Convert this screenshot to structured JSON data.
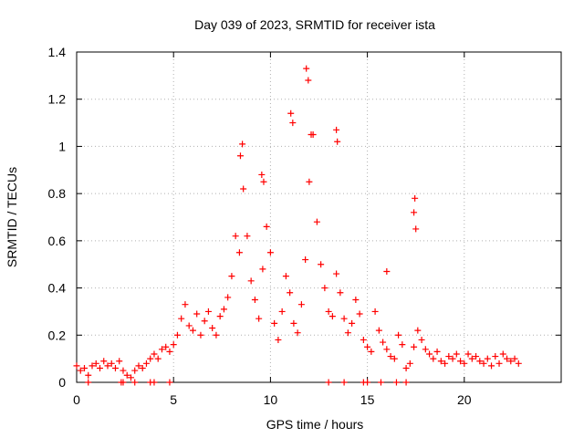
{
  "chart_data": {
    "type": "scatter",
    "title": "Day 039 of 2023, SRMTID for receiver ista",
    "xlabel": "GPS time / hours",
    "ylabel": "SRMTID / TECUs",
    "xlim": [
      0,
      25
    ],
    "ylim": [
      0,
      1.4
    ],
    "xticks": [
      0,
      5,
      10,
      15,
      20
    ],
    "xtick_labels": [
      "0",
      "5",
      "10",
      "15",
      "20"
    ],
    "yticks": [
      0,
      0.2,
      0.4,
      0.6,
      0.8,
      1.0,
      1.2,
      1.4
    ],
    "ytick_labels": [
      "0",
      "0.2",
      "0.4",
      "0.6",
      "0.8",
      "1",
      "1.2",
      "1.4"
    ],
    "grid": true,
    "marker": "+",
    "color": "#ff0000",
    "series": [
      {
        "name": "SRMTID",
        "x": [
          0.0,
          0.2,
          0.4,
          0.6,
          0.8,
          1.0,
          1.2,
          1.4,
          1.6,
          1.8,
          2.0,
          2.2,
          2.4,
          2.6,
          2.8,
          3.0,
          3.2,
          3.4,
          3.6,
          3.8,
          4.0,
          4.2,
          4.4,
          4.6,
          4.8,
          5.0,
          5.2,
          5.4,
          5.6,
          5.8,
          6.0,
          6.2,
          6.4,
          6.6,
          6.8,
          7.0,
          7.2,
          7.4,
          7.6,
          7.8,
          8.0,
          8.2,
          8.4,
          8.6,
          8.8,
          9.0,
          9.2,
          9.4,
          9.6,
          9.8,
          10.0,
          10.2,
          10.4,
          10.6,
          10.8,
          11.0,
          11.2,
          11.4,
          11.6,
          11.8,
          12.0,
          12.2,
          12.4,
          12.6,
          12.8,
          13.0,
          13.2,
          13.4,
          13.6,
          13.8,
          14.0,
          14.2,
          14.4,
          14.6,
          14.8,
          15.0,
          15.2,
          15.4,
          15.6,
          15.8,
          16.0,
          16.2,
          16.4,
          16.6,
          16.8,
          17.0,
          17.2,
          17.4,
          17.6,
          17.8,
          18.0,
          18.2,
          18.4,
          18.6,
          18.8,
          19.0,
          19.2,
          19.4,
          19.6,
          19.8,
          20.0,
          20.2,
          20.4,
          20.6,
          20.8,
          21.0,
          21.2,
          21.4,
          21.6,
          21.8,
          22.0,
          22.2,
          22.4,
          22.6,
          22.8,
          8.45,
          8.55,
          9.55,
          9.65,
          11.05,
          11.15,
          11.85,
          11.95,
          12.1,
          13.4,
          13.45,
          17.45,
          17.4,
          17.5,
          16.0,
          0.6,
          2.3,
          2.4,
          3.0,
          3.8,
          4.0,
          4.8,
          13.0,
          13.8,
          14.8,
          15.0,
          15.7,
          16.5,
          17.0
        ],
        "y": [
          0.07,
          0.05,
          0.06,
          0.03,
          0.07,
          0.08,
          0.06,
          0.09,
          0.07,
          0.08,
          0.06,
          0.09,
          0.05,
          0.03,
          0.02,
          0.05,
          0.07,
          0.06,
          0.08,
          0.1,
          0.12,
          0.1,
          0.14,
          0.15,
          0.13,
          0.16,
          0.2,
          0.27,
          0.33,
          0.24,
          0.22,
          0.29,
          0.2,
          0.26,
          0.3,
          0.23,
          0.2,
          0.28,
          0.31,
          0.36,
          0.45,
          0.62,
          0.55,
          0.82,
          0.62,
          0.43,
          0.35,
          0.27,
          0.48,
          0.66,
          0.55,
          0.25,
          0.18,
          0.3,
          0.45,
          0.38,
          0.25,
          0.21,
          0.33,
          0.52,
          0.85,
          1.05,
          0.68,
          0.5,
          0.4,
          0.3,
          0.28,
          0.46,
          0.38,
          0.27,
          0.21,
          0.25,
          0.35,
          0.29,
          0.18,
          0.15,
          0.13,
          0.3,
          0.22,
          0.17,
          0.14,
          0.11,
          0.1,
          0.2,
          0.16,
          0.06,
          0.08,
          0.15,
          0.22,
          0.18,
          0.14,
          0.12,
          0.1,
          0.13,
          0.09,
          0.08,
          0.11,
          0.1,
          0.12,
          0.09,
          0.08,
          0.12,
          0.1,
          0.11,
          0.09,
          0.08,
          0.1,
          0.07,
          0.11,
          0.08,
          0.12,
          0.1,
          0.09,
          0.1,
          0.08,
          0.96,
          1.01,
          0.88,
          0.85,
          1.14,
          1.1,
          1.33,
          1.28,
          1.05,
          1.07,
          1.02,
          0.78,
          0.72,
          0.65,
          0.47,
          0.0,
          0.0,
          0.0,
          0.0,
          0.0,
          0.0,
          0.0,
          0.0,
          0.0,
          0.0,
          0.0,
          0.0,
          0.0,
          0.0
        ]
      }
    ]
  }
}
